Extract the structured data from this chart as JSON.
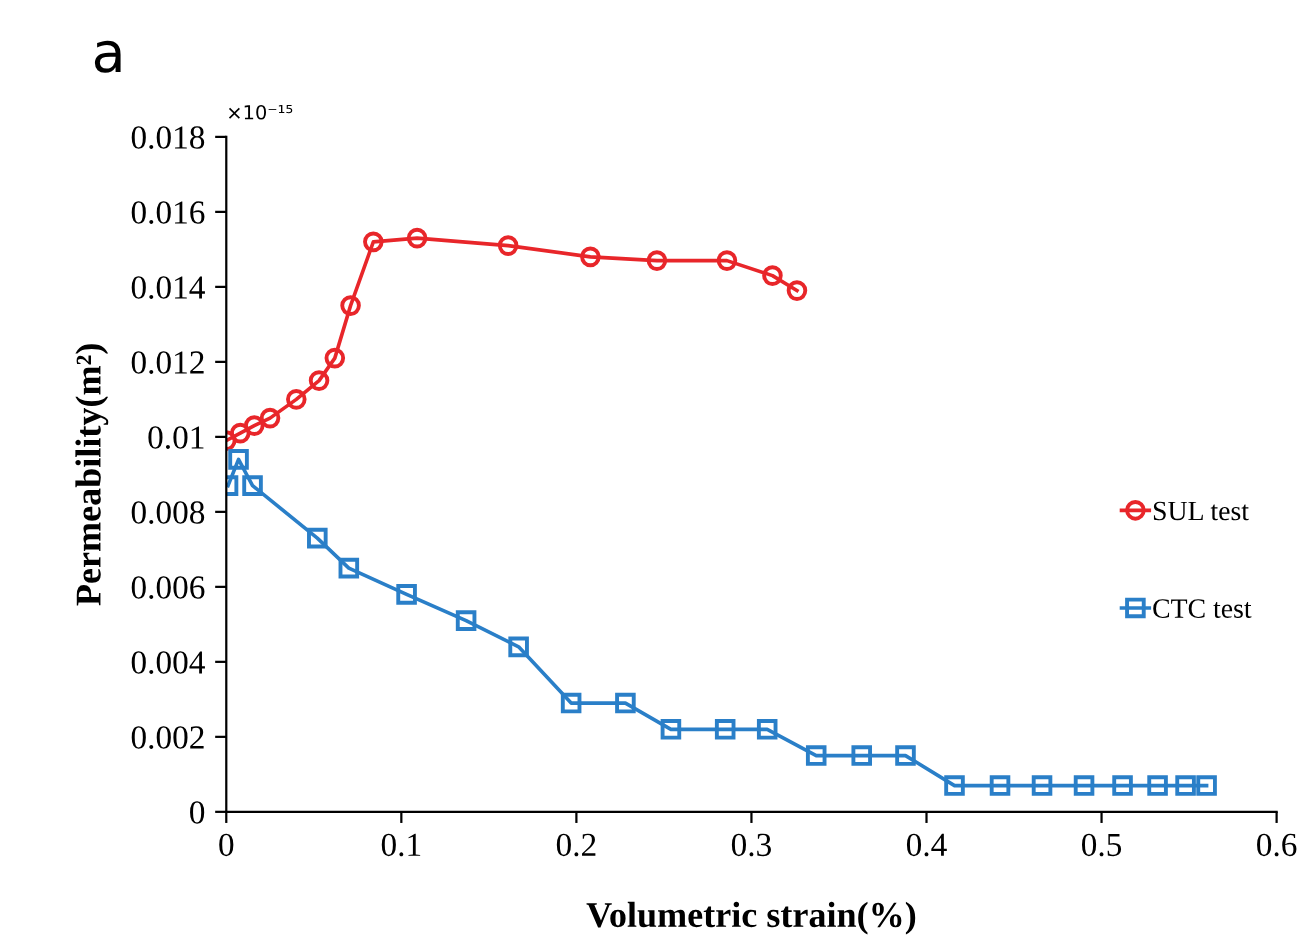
{
  "chart_data": {
    "type": "line",
    "xlabel": "Volumetric strain(%)",
    "ylabel": "Permeability(m²)",
    "annotations": [
      "a",
      "×10⁻¹⁵"
    ],
    "xlim": [
      0,
      0.6
    ],
    "xticks": [
      0,
      0.1,
      0.2,
      0.3,
      0.4,
      0.5,
      0.6
    ],
    "ylim": [
      0,
      0.018
    ],
    "yticks": [
      0,
      0.002,
      0.004,
      0.006,
      0.008,
      0.01,
      0.012,
      0.014,
      0.016,
      0.018
    ],
    "grid": false,
    "legend": "right",
    "line_style": "solid",
    "series": [
      {
        "name": "SUL test",
        "color": "#e8262a",
        "marker": "circle",
        "x": [
          0.0,
          0.008,
          0.016,
          0.025,
          0.04,
          0.053,
          0.062,
          0.071,
          0.084,
          0.109,
          0.161,
          0.208,
          0.246,
          0.286,
          0.312,
          0.326
        ],
        "values": [
          0.0099,
          0.0101,
          0.0103,
          0.0105,
          0.011,
          0.0115,
          0.0121,
          0.0135,
          0.0152,
          0.0153,
          0.0151,
          0.0148,
          0.0147,
          0.0147,
          0.0143,
          0.0139
        ]
      },
      {
        "name": "CTC test",
        "color": "#2a7fc8",
        "marker": "square",
        "x": [
          0.001,
          0.007,
          0.015,
          0.052,
          0.07,
          0.103,
          0.137,
          0.167,
          0.197,
          0.228,
          0.254,
          0.285,
          0.309,
          0.337,
          0.363,
          0.388,
          0.416,
          0.442,
          0.466,
          0.49,
          0.512,
          0.532,
          0.548,
          0.56
        ],
        "values": [
          0.0087,
          0.0094,
          0.0087,
          0.0073,
          0.0065,
          0.0058,
          0.0051,
          0.0044,
          0.0029,
          0.0029,
          0.0022,
          0.0022,
          0.0022,
          0.0015,
          0.0015,
          0.0015,
          0.0007,
          0.0007,
          0.0007,
          0.0007,
          0.0007,
          0.0007,
          0.0007,
          0.0007
        ]
      }
    ]
  }
}
